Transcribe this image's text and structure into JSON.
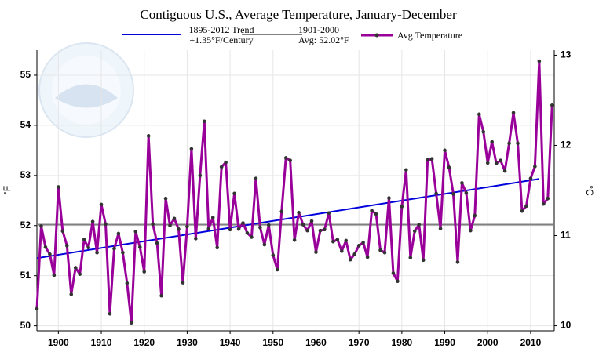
{
  "chart_data": {
    "type": "line",
    "title": "Contiguous U.S., Average Temperature, January-December",
    "y_label": "°F",
    "y2_label": "°C",
    "x": [
      1895,
      1896,
      1897,
      1898,
      1899,
      1900,
      1901,
      1902,
      1903,
      1904,
      1905,
      1906,
      1907,
      1908,
      1909,
      1910,
      1911,
      1912,
      1913,
      1914,
      1915,
      1916,
      1917,
      1918,
      1919,
      1920,
      1921,
      1922,
      1923,
      1924,
      1925,
      1926,
      1927,
      1928,
      1929,
      1930,
      1931,
      1932,
      1933,
      1934,
      1935,
      1936,
      1937,
      1938,
      1939,
      1940,
      1941,
      1942,
      1943,
      1944,
      1945,
      1946,
      1947,
      1948,
      1949,
      1950,
      1951,
      1952,
      1953,
      1954,
      1955,
      1956,
      1957,
      1958,
      1959,
      1960,
      1961,
      1962,
      1963,
      1964,
      1965,
      1966,
      1967,
      1968,
      1969,
      1970,
      1971,
      1972,
      1973,
      1974,
      1975,
      1976,
      1977,
      1978,
      1979,
      1980,
      1981,
      1982,
      1983,
      1984,
      1985,
      1986,
      1987,
      1988,
      1989,
      1990,
      1991,
      1992,
      1993,
      1994,
      1995,
      1996,
      1997,
      1998,
      1999,
      2000,
      2001,
      2002,
      2003,
      2004,
      2005,
      2006,
      2007,
      2008,
      2009,
      2010,
      2011,
      2012,
      2013,
      2014,
      2015
    ],
    "series": [
      {
        "name": "Avg Temperature",
        "color": "#990099",
        "marker_color": "#333333",
        "values": [
          50.34,
          51.99,
          51.57,
          51.43,
          51.01,
          52.77,
          51.89,
          51.6,
          50.63,
          51.16,
          51.03,
          51.72,
          51.56,
          52.08,
          51.46,
          52.42,
          52.03,
          50.24,
          51.54,
          51.84,
          51.46,
          50.85,
          50.06,
          51.88,
          51.57,
          51.08,
          53.79,
          52.03,
          51.65,
          50.6,
          52.54,
          52.0,
          52.14,
          51.93,
          50.86,
          51.98,
          53.53,
          51.74,
          53.0,
          54.08,
          51.94,
          52.16,
          51.56,
          53.17,
          53.26,
          51.92,
          52.64,
          51.93,
          52.05,
          51.85,
          51.77,
          52.94,
          51.96,
          51.62,
          52.01,
          51.41,
          51.12,
          52.28,
          53.35,
          53.3,
          51.71,
          52.26,
          52.02,
          51.9,
          52.09,
          51.47,
          51.9,
          51.92,
          52.25,
          51.68,
          51.72,
          51.49,
          51.7,
          51.32,
          51.43,
          51.6,
          51.66,
          51.37,
          52.3,
          52.23,
          51.51,
          51.46,
          52.55,
          51.05,
          50.89,
          52.38,
          53.11,
          51.36,
          51.89,
          52.02,
          51.31,
          53.31,
          53.33,
          52.64,
          51.94,
          53.5,
          53.16,
          52.63,
          51.27,
          52.85,
          52.65,
          51.9,
          52.2,
          54.22,
          53.87,
          53.25,
          53.67,
          53.24,
          53.3,
          53.09,
          53.64,
          54.25,
          53.64,
          52.29,
          52.39,
          52.94,
          53.18,
          55.28,
          52.43,
          52.54,
          54.4
        ]
      }
    ],
    "trend": {
      "name": "1895-2012 Trend",
      "label": "+1.35°F/Century",
      "color": "#0000dd",
      "x": [
        1895,
        2012
      ],
      "values": [
        51.35,
        52.93
      ]
    },
    "average": {
      "name": "1901-2000",
      "label": "Avg: 52.02°F",
      "value": 52.02,
      "color": "#808080"
    },
    "xlim": [
      1895,
      2015.5
    ],
    "xticks": [
      1900,
      1910,
      1920,
      1930,
      1940,
      1950,
      1960,
      1970,
      1980,
      1990,
      2000,
      2010
    ],
    "ylim": [
      49.9,
      55.5
    ],
    "yticks": [
      50,
      51,
      52,
      53,
      54,
      55
    ],
    "y2lim": [
      9.944,
      13.056
    ],
    "y2ticks": [
      10,
      11,
      12,
      13
    ],
    "grid": true
  }
}
